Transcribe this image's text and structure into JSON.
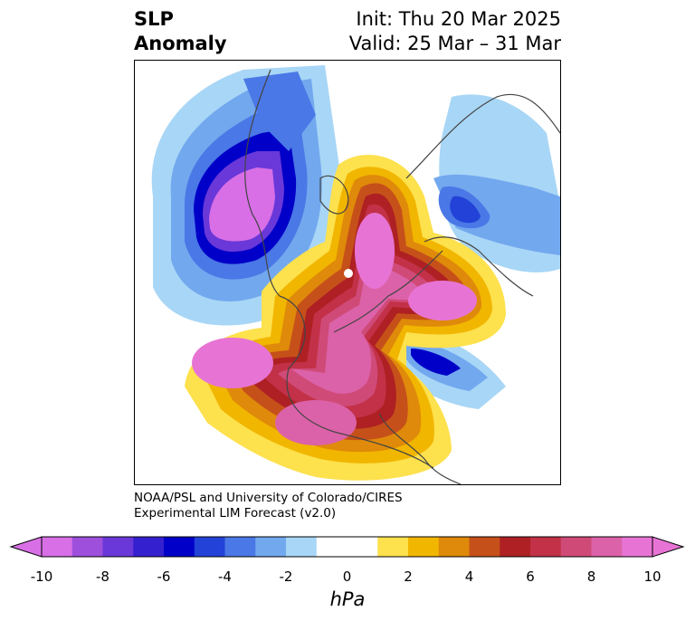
{
  "title": {
    "line1": "SLP",
    "line2": "Anomaly"
  },
  "init": "Init: Thu 20 Mar 2025",
  "valid": "Valid: 25 Mar – 31 Mar",
  "credit": {
    "line1": "NOAA/PSL and University of Colorado/CIRES",
    "line2": "Experimental LIM Forecast (v2.0)"
  },
  "colorbar": {
    "label": "hPa",
    "ticks": [
      "-10",
      "-8",
      "-6",
      "-4",
      "-2",
      "0",
      "2",
      "4",
      "6",
      "8",
      "10"
    ],
    "colors": [
      "#d86fe6",
      "#9e4fdc",
      "#6a38d9",
      "#3520cf",
      "#0000c8",
      "#2342d8",
      "#4a78e6",
      "#72a8ee",
      "#a8d6f6",
      "#ffffff",
      "#ffffff",
      "#fde14d",
      "#f1b600",
      "#df8a0a",
      "#c6501a",
      "#ae2023",
      "#c23148",
      "#d04a78",
      "#db62a8",
      "#e774d4"
    ],
    "under_color": "#d86fe6",
    "over_color": "#e774d4"
  }
}
